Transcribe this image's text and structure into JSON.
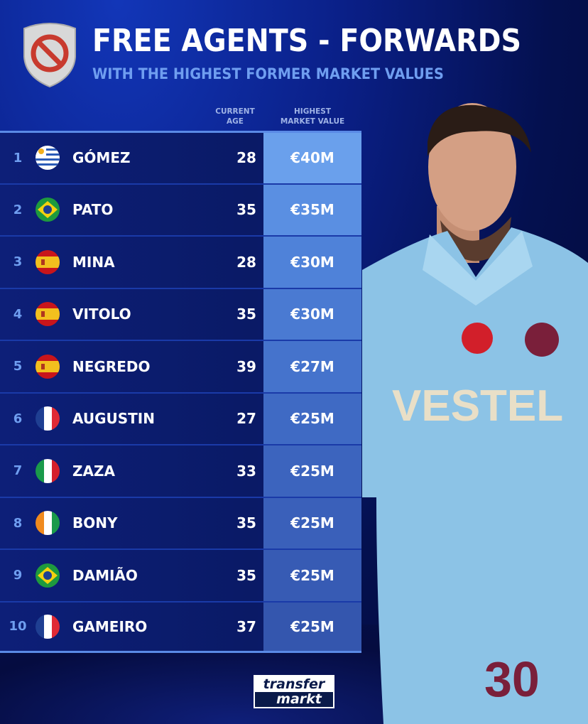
{
  "header": {
    "title": "FREE AGENTS - FORWARDS",
    "subtitle": "WITH THE HIGHEST FORMER MARKET VALUES",
    "badge_icon": "prohibited-shield-icon"
  },
  "columns": {
    "age": "CURRENT AGE",
    "age_l1": "CURRENT",
    "age_l2": "AGE",
    "value_l1": "HIGHEST",
    "value_l2": "MARKET VALUE"
  },
  "rows": [
    {
      "rank": "1",
      "flag": "uruguay",
      "name": "GÓMEZ",
      "age": "28",
      "value": "€40M"
    },
    {
      "rank": "2",
      "flag": "brazil",
      "name": "PATO",
      "age": "35",
      "value": "€35M"
    },
    {
      "rank": "3",
      "flag": "spain",
      "name": "MINA",
      "age": "28",
      "value": "€30M"
    },
    {
      "rank": "4",
      "flag": "spain",
      "name": "VITOLO",
      "age": "35",
      "value": "€30M"
    },
    {
      "rank": "5",
      "flag": "spain",
      "name": "NEGREDO",
      "age": "39",
      "value": "€27M"
    },
    {
      "rank": "6",
      "flag": "france",
      "name": "AUGUSTIN",
      "age": "27",
      "value": "€25M"
    },
    {
      "rank": "7",
      "flag": "italy",
      "name": "ZAZA",
      "age": "33",
      "value": "€25M"
    },
    {
      "rank": "8",
      "flag": "ireland",
      "name": "BONY",
      "age": "35",
      "value": "€25M"
    },
    {
      "rank": "9",
      "flag": "brazil",
      "name": "DAMIÃO",
      "age": "35",
      "value": "€25M"
    },
    {
      "rank": "10",
      "flag": "france",
      "name": "GAMEIRO",
      "age": "37",
      "value": "€25M"
    }
  ],
  "player": {
    "sponsor": "VESTEL",
    "number": "30"
  },
  "brand": {
    "line1": "transfer",
    "line2": "markt"
  },
  "colors": {
    "accent": "#6f9ef0",
    "top_value": "#6aa0ec",
    "background": "#0a1f86"
  }
}
